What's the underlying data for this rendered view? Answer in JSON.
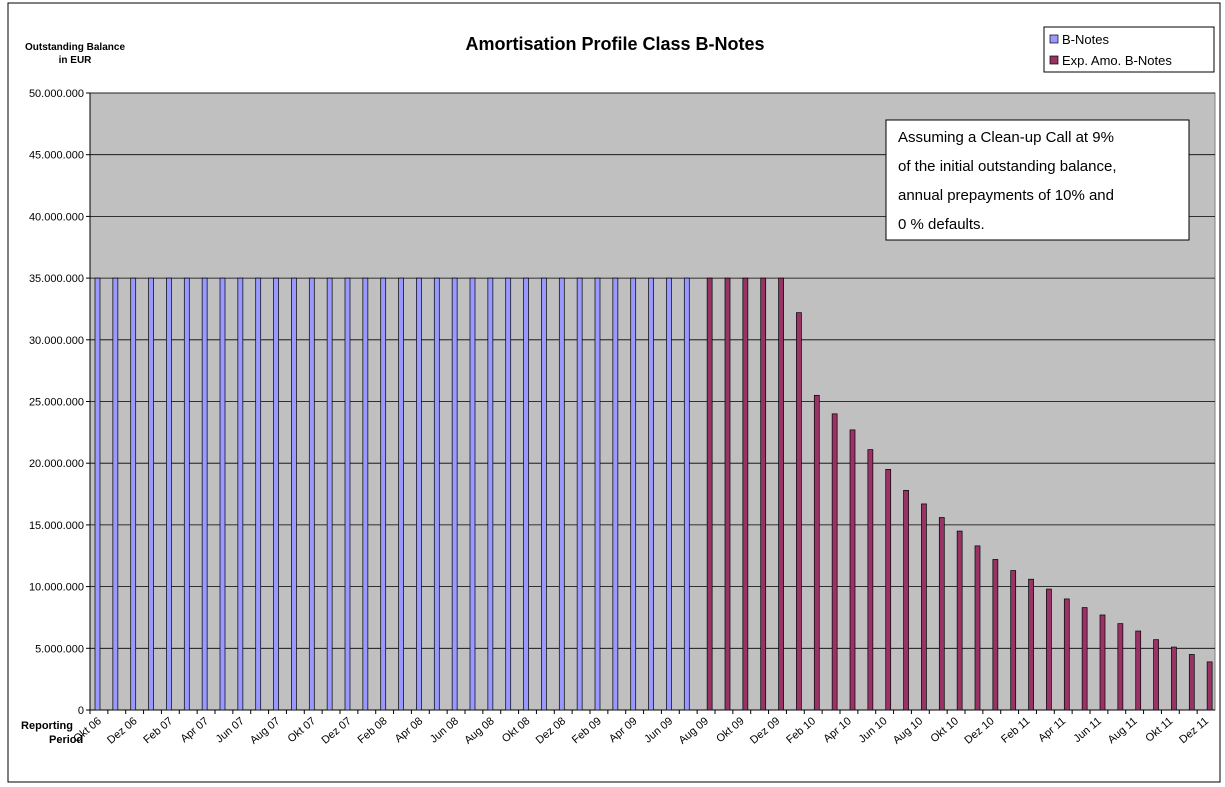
{
  "chart_data": {
    "type": "bar",
    "title": "Amortisation Profile Class B-Notes",
    "y_label": [
      "Outstanding Balance",
      "in EUR"
    ],
    "x_label": [
      "Reporting",
      "Period"
    ],
    "annotation": [
      "Assuming a Clean-up Call at 9%",
      "of the initial outstanding balance,",
      "annual prepayments of 10% and",
      "0 % defaults."
    ],
    "categories": [
      "Okt 06",
      null,
      "Dez 06",
      null,
      "Feb 07",
      null,
      "Apr 07",
      null,
      "Jun 07",
      null,
      "Aug 07",
      null,
      "Okt 07",
      null,
      "Dez 07",
      null,
      "Feb 08",
      null,
      "Apr 08",
      null,
      "Jun 08",
      null,
      "Aug 08",
      null,
      "Okt 08",
      null,
      "Dez 08",
      null,
      "Feb 09",
      null,
      "Apr 09",
      null,
      "Jun 09",
      null,
      "Aug 09",
      null,
      "Okt 09",
      null,
      "Dez 09",
      null,
      "Feb 10",
      null,
      "Apr 10",
      null,
      "Jun 10",
      null,
      "Aug 10",
      null,
      "Okt 10",
      null,
      "Dez 10",
      null,
      "Feb 11",
      null,
      "Apr 11",
      null,
      "Jun 11",
      null,
      "Aug 11",
      null,
      "Okt 11",
      null,
      "Dez 11"
    ],
    "series": [
      {
        "name": "B-Notes",
        "color": "#9999ff",
        "values": [
          35000000,
          35000000,
          35000000,
          35000000,
          35000000,
          35000000,
          35000000,
          35000000,
          35000000,
          35000000,
          35000000,
          35000000,
          35000000,
          35000000,
          35000000,
          35000000,
          35000000,
          35000000,
          35000000,
          35000000,
          35000000,
          35000000,
          35000000,
          35000000,
          35000000,
          35000000,
          35000000,
          35000000,
          35000000,
          35000000,
          35000000,
          35000000,
          35000000,
          35000000,
          null,
          null,
          null,
          null,
          null,
          null,
          null,
          null,
          null,
          null,
          null,
          null,
          null,
          null,
          null,
          null,
          null,
          null,
          null,
          null,
          null,
          null,
          null,
          null,
          null,
          null,
          null,
          null,
          null
        ]
      },
      {
        "name": "Exp. Amo. B-Notes",
        "color": "#993366",
        "values": [
          null,
          null,
          null,
          null,
          null,
          null,
          null,
          null,
          null,
          null,
          null,
          null,
          null,
          null,
          null,
          null,
          null,
          null,
          null,
          null,
          null,
          null,
          null,
          null,
          null,
          null,
          null,
          null,
          null,
          null,
          null,
          null,
          null,
          null,
          35000000,
          35000000,
          35000000,
          35000000,
          35000000,
          32200000,
          25500000,
          24000000,
          22700000,
          21100000,
          19500000,
          17800000,
          16700000,
          15600000,
          14500000,
          13300000,
          12200000,
          11300000,
          10600000,
          9800000,
          9000000,
          8300000,
          7700000,
          7000000,
          6400000,
          5700000,
          5100000,
          4500000,
          3900000
        ]
      }
    ],
    "ylim": [
      0,
      50000000
    ],
    "yticks": [
      0,
      {
        "value": 5000000,
        "label": "5.000.000"
      },
      {
        "value": 10000000,
        "label": "10.000.000"
      },
      {
        "value": 15000000,
        "label": "15.000.000"
      },
      {
        "value": 20000000,
        "label": "20.000.000"
      },
      {
        "value": 25000000,
        "label": "25.000.000"
      },
      {
        "value": 30000000,
        "label": "30.000.000"
      },
      {
        "value": 35000000,
        "label": "35.000.000"
      },
      {
        "value": 40000000,
        "label": "40.000.000"
      },
      {
        "value": 45000000,
        "label": "45.000.000"
      },
      {
        "value": 50000000,
        "label": "50.000.000"
      }
    ],
    "grid": true,
    "legend": "top-right"
  }
}
